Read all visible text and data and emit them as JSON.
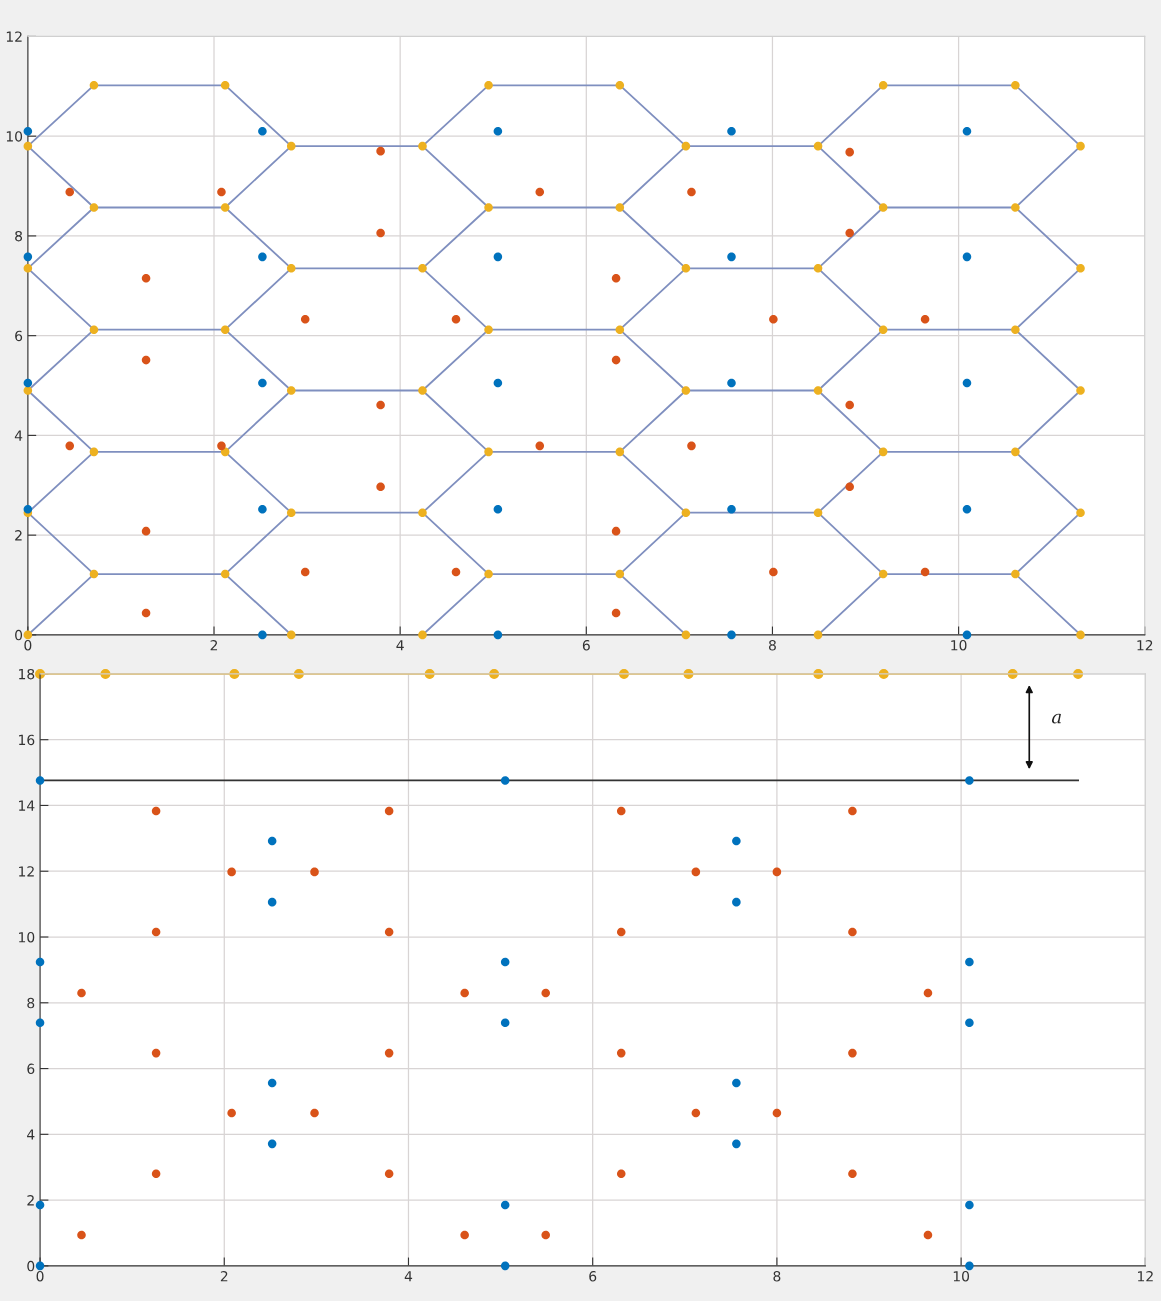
{
  "chart_data": [
    {
      "type": "scatter",
      "marker": "circle",
      "grid": true,
      "xlim": [
        0,
        12
      ],
      "ylim": [
        0,
        12
      ],
      "xticks": [
        0,
        2,
        4,
        6,
        8,
        10,
        12
      ],
      "yticks": [
        0,
        2,
        4,
        6,
        8,
        10,
        12
      ],
      "series": [
        {
          "type": "line",
          "marker": "none",
          "color": "#7f8fbf",
          "x": [
            0,
            0.71,
            0,
            0.71,
            0,
            0.71,
            0,
            0.71,
            0,
            0.71
          ],
          "values": [
            0,
            1.22,
            2.45,
            3.67,
            4.9,
            6.12,
            7.35,
            8.57,
            9.8,
            11.02
          ]
        },
        {
          "type": "line",
          "marker": "none",
          "color": "#7f8fbf",
          "x": [
            2.83,
            2.12,
            2.83,
            2.12,
            2.83,
            2.12,
            2.83,
            2.12,
            2.83,
            2.12
          ],
          "values": [
            0,
            1.22,
            2.45,
            3.67,
            4.9,
            6.12,
            7.35,
            8.57,
            9.8,
            11.02
          ]
        },
        {
          "type": "line",
          "marker": "none",
          "color": "#7f8fbf",
          "x": [
            4.24,
            4.95,
            4.24,
            4.95,
            4.24,
            4.95,
            4.24,
            4.95,
            4.24,
            4.95
          ],
          "values": [
            0,
            1.22,
            2.45,
            3.67,
            4.9,
            6.12,
            7.35,
            8.57,
            9.8,
            11.02
          ]
        },
        {
          "type": "line",
          "marker": "none",
          "color": "#7f8fbf",
          "x": [
            7.07,
            6.36,
            7.07,
            6.36,
            7.07,
            6.36,
            7.07,
            6.36,
            7.07,
            6.36
          ],
          "values": [
            0,
            1.22,
            2.45,
            3.67,
            4.9,
            6.12,
            7.35,
            8.57,
            9.8,
            11.02
          ]
        },
        {
          "type": "line",
          "marker": "none",
          "color": "#7f8fbf",
          "x": [
            8.49,
            9.19,
            8.49,
            9.19,
            8.49,
            9.19,
            8.49,
            9.19,
            8.49,
            9.19
          ],
          "values": [
            0,
            1.22,
            2.45,
            3.67,
            4.9,
            6.12,
            7.35,
            8.57,
            9.8,
            11.02
          ]
        },
        {
          "type": "line",
          "marker": "none",
          "color": "#7f8fbf",
          "x": [
            11.31,
            10.61,
            11.31,
            10.61,
            11.31,
            10.61,
            11.31,
            10.61,
            11.31,
            10.61
          ],
          "values": [
            0,
            1.22,
            2.45,
            3.67,
            4.9,
            6.12,
            7.35,
            8.57,
            9.8,
            11.02
          ]
        },
        {
          "type": "line",
          "marker": "none",
          "color": "#7f8fbf",
          "x": [
            0.71,
            2.12
          ],
          "values": [
            1.22,
            1.22
          ]
        },
        {
          "type": "line",
          "marker": "none",
          "color": "#7f8fbf",
          "x": [
            4.95,
            6.36
          ],
          "values": [
            1.22,
            1.22
          ]
        },
        {
          "type": "line",
          "marker": "none",
          "color": "#7f8fbf",
          "x": [
            9.19,
            10.61
          ],
          "values": [
            1.22,
            1.22
          ]
        },
        {
          "type": "line",
          "marker": "none",
          "color": "#7f8fbf",
          "x": [
            0.71,
            2.12
          ],
          "values": [
            3.67,
            3.67
          ]
        },
        {
          "type": "line",
          "marker": "none",
          "color": "#7f8fbf",
          "x": [
            4.95,
            6.36
          ],
          "values": [
            3.67,
            3.67
          ]
        },
        {
          "type": "line",
          "marker": "none",
          "color": "#7f8fbf",
          "x": [
            9.19,
            10.61
          ],
          "values": [
            3.67,
            3.67
          ]
        },
        {
          "type": "line",
          "marker": "none",
          "color": "#7f8fbf",
          "x": [
            0.71,
            2.12
          ],
          "values": [
            6.12,
            6.12
          ]
        },
        {
          "type": "line",
          "marker": "none",
          "color": "#7f8fbf",
          "x": [
            4.95,
            6.36
          ],
          "values": [
            6.12,
            6.12
          ]
        },
        {
          "type": "line",
          "marker": "none",
          "color": "#7f8fbf",
          "x": [
            9.19,
            10.61
          ],
          "values": [
            6.12,
            6.12
          ]
        },
        {
          "type": "line",
          "marker": "none",
          "color": "#7f8fbf",
          "x": [
            0.71,
            2.12
          ],
          "values": [
            8.57,
            8.57
          ]
        },
        {
          "type": "line",
          "marker": "none",
          "color": "#7f8fbf",
          "x": [
            4.95,
            6.36
          ],
          "values": [
            8.57,
            8.57
          ]
        },
        {
          "type": "line",
          "marker": "none",
          "color": "#7f8fbf",
          "x": [
            9.19,
            10.61
          ],
          "values": [
            8.57,
            8.57
          ]
        },
        {
          "type": "line",
          "marker": "none",
          "color": "#7f8fbf",
          "x": [
            0.71,
            2.12
          ],
          "values": [
            11.02,
            11.02
          ]
        },
        {
          "type": "line",
          "marker": "none",
          "color": "#7f8fbf",
          "x": [
            4.95,
            6.36
          ],
          "values": [
            11.02,
            11.02
          ]
        },
        {
          "type": "line",
          "marker": "none",
          "color": "#7f8fbf",
          "x": [
            9.19,
            10.61
          ],
          "values": [
            11.02,
            11.02
          ]
        },
        {
          "type": "line",
          "marker": "none",
          "color": "#7f8fbf",
          "x": [
            2.83,
            4.24
          ],
          "values": [
            2.45,
            2.45
          ]
        },
        {
          "type": "line",
          "marker": "none",
          "color": "#7f8fbf",
          "x": [
            7.07,
            8.49
          ],
          "values": [
            2.45,
            2.45
          ]
        },
        {
          "type": "line",
          "marker": "none",
          "color": "#7f8fbf",
          "x": [
            2.83,
            4.24
          ],
          "values": [
            4.9,
            4.9
          ]
        },
        {
          "type": "line",
          "marker": "none",
          "color": "#7f8fbf",
          "x": [
            7.07,
            8.49
          ],
          "values": [
            4.9,
            4.9
          ]
        },
        {
          "type": "line",
          "marker": "none",
          "color": "#7f8fbf",
          "x": [
            2.83,
            4.24
          ],
          "values": [
            7.35,
            7.35
          ]
        },
        {
          "type": "line",
          "marker": "none",
          "color": "#7f8fbf",
          "x": [
            7.07,
            8.49
          ],
          "values": [
            7.35,
            7.35
          ]
        },
        {
          "type": "line",
          "marker": "none",
          "color": "#7f8fbf",
          "x": [
            2.83,
            4.24
          ],
          "values": [
            9.8,
            9.8
          ]
        },
        {
          "type": "line",
          "marker": "none",
          "color": "#7f8fbf",
          "x": [
            7.07,
            8.49
          ],
          "values": [
            9.8,
            9.8
          ]
        },
        {
          "color": "#edb120",
          "x": [
            0,
            0,
            0,
            0,
            0,
            0.71,
            0.71,
            0.71,
            0.71,
            0.71,
            2.12,
            2.12,
            2.12,
            2.12,
            2.12,
            2.83,
            2.83,
            2.83,
            2.83,
            2.83,
            4.24,
            4.24,
            4.24,
            4.24,
            4.24,
            4.95,
            4.95,
            4.95,
            4.95,
            4.95,
            6.36,
            6.36,
            6.36,
            6.36,
            6.36,
            7.07,
            7.07,
            7.07,
            7.07,
            7.07,
            8.49,
            8.49,
            8.49,
            8.49,
            8.49,
            9.19,
            9.19,
            9.19,
            9.19,
            9.19,
            10.61,
            10.61,
            10.61,
            10.61,
            10.61,
            11.31,
            11.31,
            11.31,
            11.31,
            11.31
          ],
          "values": [
            0,
            2.45,
            4.9,
            7.35,
            9.8,
            1.22,
            3.67,
            6.12,
            8.57,
            11.02,
            1.22,
            3.67,
            6.12,
            8.57,
            11.02,
            0,
            2.45,
            4.9,
            7.35,
            9.8,
            0,
            2.45,
            4.9,
            7.35,
            9.8,
            1.22,
            3.67,
            6.12,
            8.57,
            11.02,
            1.22,
            3.67,
            6.12,
            8.57,
            11.02,
            0,
            2.45,
            4.9,
            7.35,
            9.8,
            0,
            2.45,
            4.9,
            7.35,
            9.8,
            1.22,
            3.67,
            6.12,
            8.57,
            11.02,
            1.22,
            3.67,
            6.12,
            8.57,
            11.02,
            0,
            2.45,
            4.9,
            7.35,
            9.8
          ]
        },
        {
          "color": "#0072bd",
          "x": [
            0,
            0,
            0,
            0,
            2.52,
            2.52,
            2.52,
            2.52,
            2.52,
            5.05,
            5.05,
            5.05,
            5.05,
            5.05,
            7.56,
            7.56,
            7.56,
            7.56,
            7.56,
            10.09,
            10.09,
            10.09,
            10.09,
            10.09
          ],
          "values": [
            2.52,
            5.05,
            7.58,
            10.1,
            0,
            2.52,
            5.05,
            7.58,
            10.1,
            0,
            2.52,
            5.05,
            7.58,
            10.1,
            0,
            2.52,
            5.05,
            7.58,
            10.1,
            0,
            2.52,
            5.05,
            7.58,
            10.1
          ]
        },
        {
          "color": "#d95319",
          "x": [
            0.45,
            2.08,
            3.79,
            5.5,
            7.13,
            8.83,
            1.27,
            3.79,
            6.32,
            8.83,
            2.98,
            4.6,
            8.01,
            9.64,
            1.27,
            6.32,
            3.79,
            8.83,
            0.45,
            2.08,
            5.5,
            7.13,
            1.27,
            6.32,
            3.79,
            8.83,
            2.98,
            4.6,
            8.01,
            9.64,
            1.27,
            6.32
          ],
          "values": [
            8.88,
            8.88,
            9.7,
            8.88,
            8.88,
            9.68,
            7.15,
            8.06,
            7.15,
            8.06,
            6.33,
            6.33,
            6.33,
            6.33,
            5.51,
            5.51,
            4.61,
            4.61,
            3.79,
            3.79,
            3.79,
            3.79,
            2.08,
            2.08,
            2.97,
            2.97,
            1.26,
            1.26,
            1.26,
            1.26,
            0.44,
            0.44
          ]
        }
      ]
    },
    {
      "type": "scatter",
      "marker": "circle",
      "grid": true,
      "xlim": [
        0,
        12
      ],
      "ylim": [
        0,
        18
      ],
      "xticks": [
        0,
        2,
        4,
        6,
        8,
        10,
        12
      ],
      "yticks": [
        0,
        2,
        4,
        6,
        8,
        10,
        12,
        14,
        16,
        18
      ],
      "annotations": [
        "a"
      ],
      "series": [
        {
          "type": "line",
          "color": "#edb120",
          "x": [
            0,
            0.71,
            2.11,
            2.81,
            4.23,
            4.93,
            6.34,
            7.04,
            8.45,
            9.16,
            10.56,
            11.27
          ],
          "values": [
            18,
            18,
            18,
            18,
            18,
            18,
            18,
            18,
            18,
            18,
            18,
            18
          ]
        },
        {
          "type": "line",
          "marker": "none",
          "color": "#333333",
          "x": [
            0,
            11.27
          ],
          "values": [
            14.76,
            14.76
          ]
        },
        {
          "color": "#0072bd",
          "x": [
            0,
            0,
            0,
            0,
            0,
            2.52,
            2.52,
            2.52,
            2.52,
            5.05,
            5.05,
            5.05,
            5.05,
            5.05,
            7.56,
            7.56,
            7.56,
            7.56,
            10.09,
            10.09,
            10.09,
            10.09,
            10.09
          ],
          "values": [
            14.76,
            9.24,
            7.39,
            1.85,
            0,
            12.92,
            11.06,
            5.56,
            3.71,
            14.76,
            9.24,
            7.39,
            1.85,
            0,
            12.92,
            11.06,
            5.56,
            3.71,
            14.76,
            9.24,
            7.39,
            1.85,
            0
          ]
        },
        {
          "color": "#d95319",
          "x": [
            1.26,
            3.79,
            6.31,
            8.82,
            2.08,
            2.98,
            7.12,
            8.0,
            1.26,
            3.79,
            6.31,
            8.82,
            0.45,
            4.61,
            5.49,
            9.64,
            1.26,
            3.79,
            6.31,
            8.82,
            2.08,
            2.98,
            7.12,
            8.0,
            1.26,
            3.79,
            6.31,
            8.82,
            0.45,
            4.61,
            5.49,
            9.64
          ],
          "values": [
            13.83,
            13.83,
            13.83,
            13.83,
            11.98,
            11.98,
            11.98,
            11.98,
            10.15,
            10.15,
            10.15,
            10.15,
            8.3,
            8.3,
            8.3,
            8.3,
            6.47,
            6.47,
            6.47,
            6.47,
            4.65,
            4.65,
            4.65,
            4.65,
            2.8,
            2.8,
            2.8,
            2.8,
            0.94,
            0.94,
            0.94,
            0.94
          ]
        }
      ]
    }
  ]
}
